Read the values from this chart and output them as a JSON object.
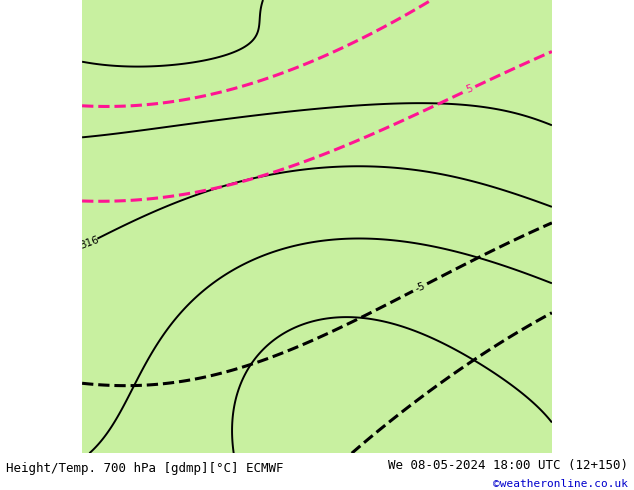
{
  "title_left": "Height/Temp. 700 hPa [gdmp][°C] ECMWF",
  "title_right": "We 08-05-2024 18:00 UTC (12+150)",
  "copyright": "©weatheronline.co.uk",
  "bg_color": "#d8d8d8",
  "land_color_rgb": [
    200,
    240,
    160
  ],
  "ocean_color_rgb": [
    210,
    210,
    210
  ],
  "border_color": "#999999",
  "font_size_title": 9,
  "font_size_copyright": 8,
  "figsize": [
    6.34,
    4.9
  ],
  "dpi": 100,
  "map_extent_lon": [
    -30,
    55
  ],
  "map_extent_lat": [
    -40,
    42
  ]
}
